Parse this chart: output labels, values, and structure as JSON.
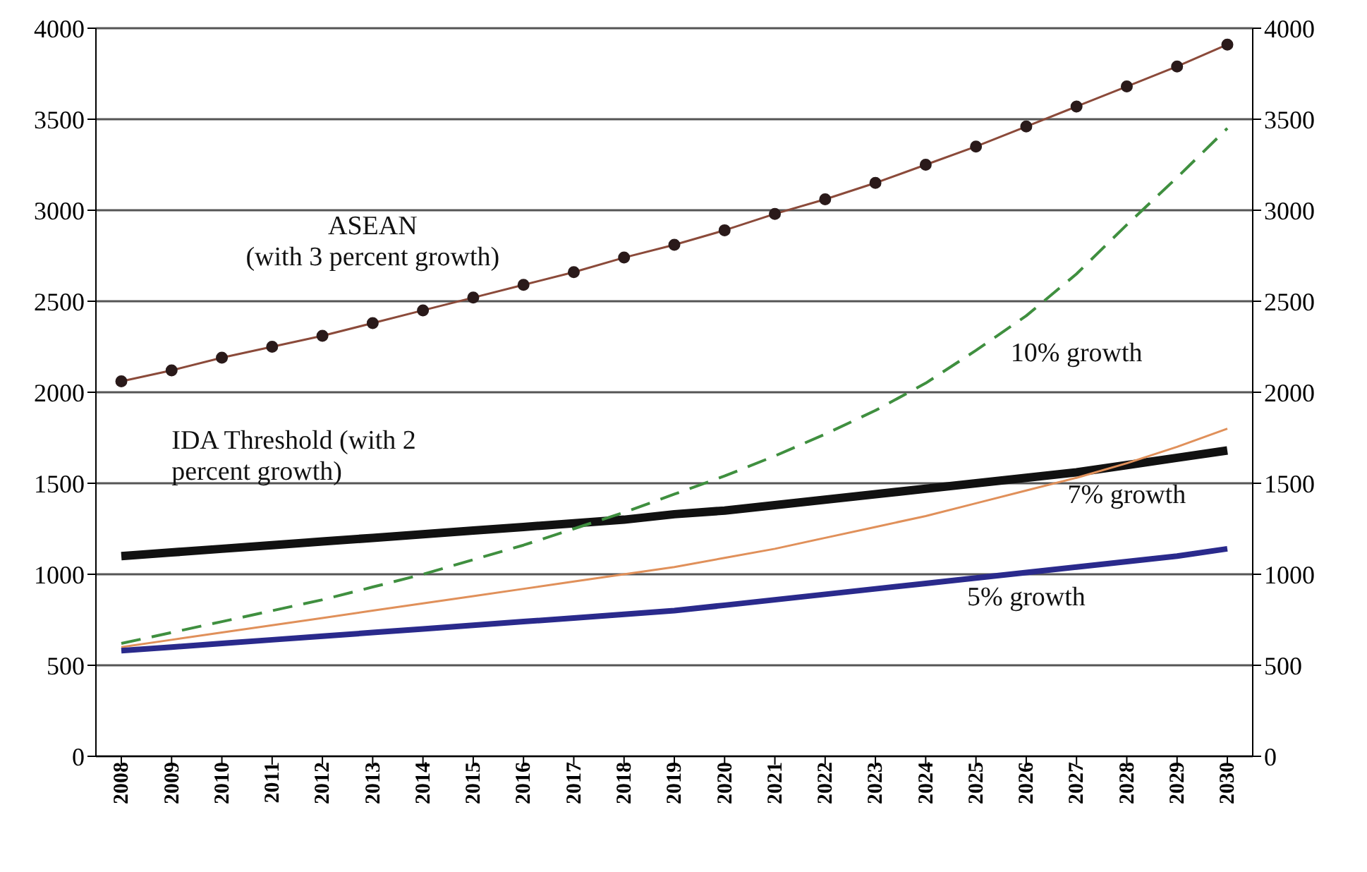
{
  "chart_data": {
    "type": "line",
    "categories": [
      "2008",
      "2009",
      "2010",
      "2011",
      "2012",
      "2013",
      "2014",
      "2015",
      "2016",
      "2017",
      "2018",
      "2019",
      "2020",
      "2021",
      "2022",
      "2023",
      "2024",
      "2025",
      "2026",
      "2027",
      "2028",
      "2029",
      "2030"
    ],
    "series": [
      {
        "name": "ASEAN (with 3 percent growth)",
        "color": "#8b4a3a",
        "marker": "circle",
        "values": [
          2060,
          2120,
          2190,
          2250,
          2310,
          2380,
          2450,
          2520,
          2590,
          2660,
          2740,
          2810,
          2890,
          2980,
          3060,
          3150,
          3250,
          3350,
          3460,
          3570,
          3680,
          3790,
          3910
        ]
      },
      {
        "name": "IDA Threshold (with 2 percent growth)",
        "color": "#111111",
        "values": [
          1100,
          1120,
          1140,
          1160,
          1180,
          1200,
          1220,
          1240,
          1260,
          1280,
          1300,
          1330,
          1350,
          1380,
          1410,
          1440,
          1470,
          1500,
          1530,
          1560,
          1600,
          1640,
          1680
        ]
      },
      {
        "name": "10% growth",
        "color": "#3f8f3f",
        "line_style": "dashed",
        "values": [
          620,
          680,
          740,
          800,
          860,
          930,
          1000,
          1080,
          1160,
          1250,
          1340,
          1440,
          1540,
          1650,
          1770,
          1900,
          2050,
          2230,
          2420,
          2650,
          2920,
          3180,
          3450
        ]
      },
      {
        "name": "7% growth",
        "color": "#e0905a",
        "values": [
          600,
          640,
          680,
          720,
          760,
          800,
          840,
          880,
          920,
          960,
          1000,
          1040,
          1090,
          1140,
          1200,
          1260,
          1320,
          1390,
          1460,
          1530,
          1610,
          1700,
          1800
        ]
      },
      {
        "name": "5% growth",
        "color": "#2a2a8c",
        "values": [
          580,
          600,
          620,
          640,
          660,
          680,
          700,
          720,
          740,
          760,
          780,
          800,
          830,
          860,
          890,
          920,
          950,
          980,
          1010,
          1040,
          1070,
          1100,
          1140
        ]
      }
    ],
    "ylim": [
      0,
      4000
    ],
    "yticks": [
      0,
      500,
      1000,
      1500,
      2000,
      2500,
      3000,
      3500,
      4000
    ],
    "y2lim": [
      0,
      4000
    ],
    "y2ticks": [
      0,
      500,
      1000,
      1500,
      2000,
      2500,
      3000,
      3500,
      4000
    ],
    "grid": "y",
    "legend": false
  }
}
